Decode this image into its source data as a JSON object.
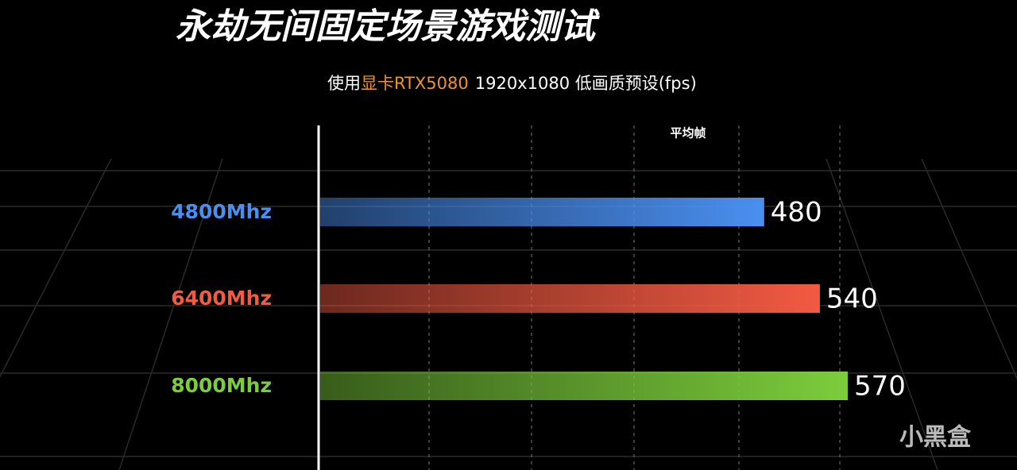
{
  "chart_data": {
    "type": "bar",
    "orientation": "horizontal",
    "title": "永劫无间固定场景游戏测试",
    "subtitle": {
      "prefix": "使用",
      "highlight": "显卡RTX5080",
      "suffix": "1920x1080 低画质预设(fps)"
    },
    "annotation": "平均帧",
    "categories": [
      "4800Mhz",
      "6400Mhz",
      "8000Mhz"
    ],
    "values": [
      480,
      540,
      570
    ],
    "colors": [
      "#4a8ff0",
      "#f25a42",
      "#7ccd3c"
    ],
    "xlim": [
      0,
      600
    ],
    "watermark": "小黑盒"
  }
}
